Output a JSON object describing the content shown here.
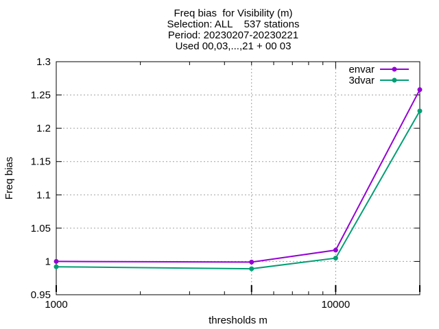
{
  "chart_data": {
    "type": "line",
    "title_lines": [
      "Freq bias  for Visibility (m)",
      "Selection: ALL    537 stations",
      "Period: 20230207-20230221",
      "Used 00,03,...,21 + 00 03"
    ],
    "xlabel": "thresholds m",
    "ylabel": "Freq bias",
    "x_scale": "log",
    "xlim": [
      1000,
      20000
    ],
    "ylim": [
      0.95,
      1.3
    ],
    "yticks": [
      0.95,
      1,
      1.05,
      1.1,
      1.15,
      1.2,
      1.25,
      1.3
    ],
    "ytick_labels": [
      "0.95",
      "1",
      "1.05",
      "1.1",
      "1.15",
      "1.2",
      "1.25",
      "1.3"
    ],
    "xticks": [
      1000,
      10000
    ],
    "xtick_labels": [
      "1000",
      "10000"
    ],
    "x": [
      1000,
      5000,
      10000,
      20000
    ],
    "series": [
      {
        "name": "envar",
        "color": "#9400d3",
        "values": [
          1.0,
          0.999,
          1.017,
          1.258
        ]
      },
      {
        "name": "3dvar",
        "color": "#009e73",
        "values": [
          0.992,
          0.989,
          1.005,
          1.226
        ]
      }
    ],
    "grid": true,
    "legend_position": "top-right"
  }
}
